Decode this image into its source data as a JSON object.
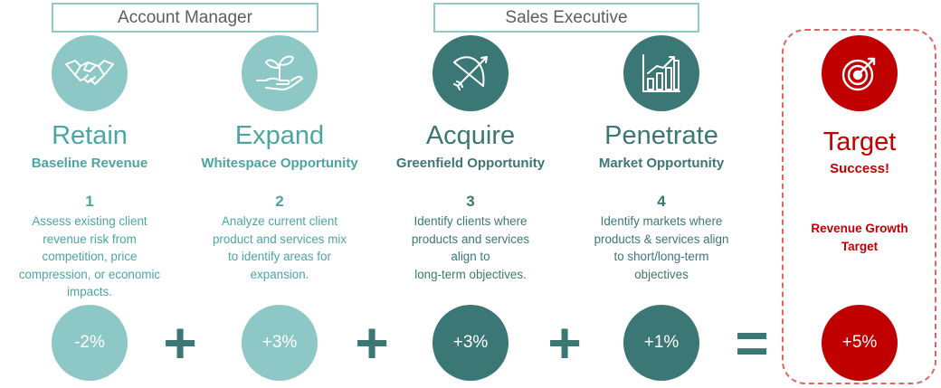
{
  "groups": [
    {
      "label": "Account Manager"
    },
    {
      "label": "Sales Executive"
    }
  ],
  "columns": [
    {
      "icon": "handshake-icon",
      "title": "Retain",
      "subtitle": "Baseline Revenue",
      "number": "1",
      "description": [
        "Assess existing client",
        "revenue risk from",
        "competition, price",
        "compression, or economic",
        "impacts."
      ],
      "value": "-2%",
      "color": "#8dc8c6",
      "text_color": "#4ba5a2"
    },
    {
      "icon": "plant-in-hand-icon",
      "title": "Expand",
      "subtitle": "Whitespace Opportunity",
      "number": "2",
      "description": [
        "Analyze current client",
        "product and services mix",
        "to identify areas for",
        "expansion."
      ],
      "value": "+3%",
      "color": "#8dc8c6",
      "text_color": "#4ba5a2"
    },
    {
      "icon": "bow-and-arrow-icon",
      "title": "Acquire",
      "subtitle": "Greenfield Opportunity",
      "number": "3",
      "description": [
        "Identify clients where",
        "products and services",
        "align to",
        "long-term objectives."
      ],
      "value": "+3%",
      "color": "#3b7774",
      "text_color": "#3b7774"
    },
    {
      "icon": "bar-chart-growth-icon",
      "title": "Penetrate",
      "subtitle": "Market Opportunity",
      "number": "4",
      "description": [
        "Identify markets where",
        "products & services align",
        "to short/long-term",
        "objectives"
      ],
      "value": "+1%",
      "color": "#3b7774",
      "text_color": "#3b7774"
    }
  ],
  "operators": [
    "+",
    "+",
    "+",
    "="
  ],
  "target": {
    "icon": "bullseye-target-icon",
    "title": "Target",
    "subtitle": "Success!",
    "label": [
      "Revenue Growth",
      "Target"
    ],
    "value": "+5%",
    "color": "#c00000"
  }
}
